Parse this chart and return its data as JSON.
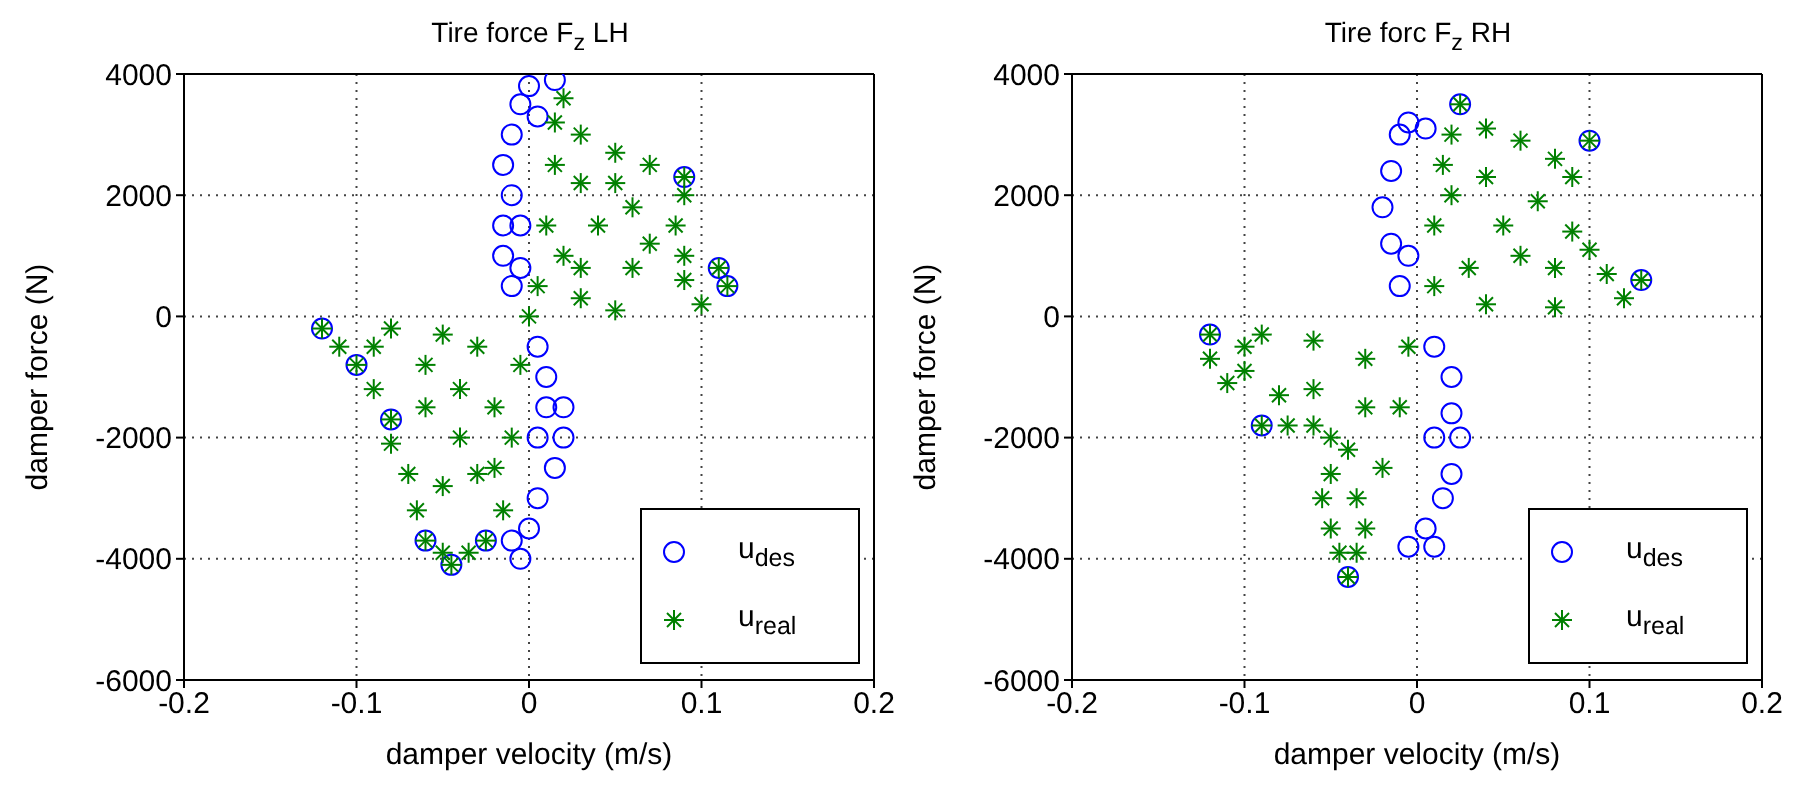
{
  "chart_data": [
    {
      "type": "scatter",
      "title": "Tire force F$_{z}$ LH",
      "xlabel": "damper velocity (m/s)",
      "ylabel": "damper force (N)",
      "xlim": [
        -0.2,
        0.2
      ],
      "xticks": [
        -0.2,
        -0.1,
        0,
        0.1,
        0.2
      ],
      "ylim": [
        -6000,
        4000
      ],
      "yticks": [
        -6000,
        -4000,
        -2000,
        0,
        2000,
        4000
      ],
      "grid": true,
      "legend": "bottom right",
      "series": [
        {
          "name": "u$_{des}$",
          "color": "#0000ff",
          "marker": "circle",
          "x": [
            -0.01,
            -0.015,
            -0.015,
            -0.01,
            -0.015,
            -0.01,
            -0.005,
            0,
            0.015,
            0.005,
            -0.005,
            -0.005,
            0.005,
            0.01,
            0.02,
            0.02,
            0.015,
            0.005,
            0,
            -0.005,
            -0.01,
            0.01,
            0.005,
            0.09,
            0.115,
            0.11,
            -0.12,
            -0.1,
            -0.08,
            -0.06,
            -0.045,
            -0.025
          ],
          "values": [
            500,
            1000,
            1500,
            2000,
            2500,
            3000,
            3500,
            3800,
            3900,
            3300,
            1500,
            800,
            -500,
            -1000,
            -1500,
            -2000,
            -2500,
            -3000,
            -3500,
            -4000,
            -3700,
            -1500,
            -2000,
            2300,
            500,
            800,
            -200,
            -800,
            -1700,
            -3700,
            -4100,
            -3700
          ]
        },
        {
          "name": "u$_{real}$",
          "color": "#008000",
          "marker": "cross",
          "x": [
            0.005,
            0.01,
            0.015,
            0.015,
            0.02,
            0.03,
            0.05,
            0.07,
            0.09,
            0.09,
            0.085,
            0.09,
            0.11,
            0.115,
            0.1,
            0.05,
            0.03,
            0.02,
            0.04,
            0.06,
            0.05,
            0.03,
            0.07,
            0.09,
            0.03,
            0.06,
            -0.12,
            -0.11,
            -0.1,
            -0.09,
            -0.08,
            -0.08,
            -0.07,
            -0.065,
            -0.06,
            -0.05,
            -0.045,
            -0.035,
            -0.025,
            -0.015,
            -0.01,
            -0.005,
            -0.05,
            -0.08,
            -0.03,
            -0.06,
            -0.04,
            -0.02,
            -0.06,
            -0.04,
            -0.03,
            -0.05,
            -0.02,
            -0.09,
            0
          ],
          "values": [
            500,
            1500,
            2500,
            3200,
            3600,
            3000,
            2700,
            2500,
            2300,
            2000,
            1500,
            1000,
            800,
            500,
            200,
            100,
            300,
            1000,
            1500,
            1800,
            2200,
            2200,
            1200,
            600,
            800,
            800,
            -200,
            -500,
            -800,
            -1200,
            -1700,
            -2100,
            -2600,
            -3200,
            -3700,
            -3900,
            -4100,
            -3900,
            -3700,
            -3200,
            -2000,
            -800,
            -300,
            -200,
            -500,
            -800,
            -1200,
            -1500,
            -1500,
            -2000,
            -2600,
            -2800,
            -2500,
            -500,
            0
          ]
        }
      ]
    },
    {
      "type": "scatter",
      "title": "Tire forc F$_{z}$ RH",
      "xlabel": "damper velocity (m/s)",
      "ylabel": "damper force (N)",
      "xlim": [
        -0.2,
        0.2
      ],
      "xticks": [
        -0.2,
        -0.1,
        0,
        0.1,
        0.2
      ],
      "ylim": [
        -6000,
        4000
      ],
      "yticks": [
        -6000,
        -4000,
        -2000,
        0,
        2000,
        4000
      ],
      "grid": true,
      "legend": "bottom right",
      "series": [
        {
          "name": "u$_{des}$",
          "color": "#0000ff",
          "marker": "circle",
          "x": [
            -0.01,
            -0.015,
            -0.02,
            -0.015,
            -0.01,
            -0.005,
            0.005,
            -0.005,
            0.01,
            0.02,
            0.02,
            0.025,
            0.02,
            0.015,
            0.005,
            -0.005,
            0.01,
            0.01,
            0.1,
            0.13,
            -0.12,
            -0.09,
            -0.04,
            0.025
          ],
          "values": [
            500,
            1200,
            1800,
            2400,
            3000,
            3200,
            3100,
            1000,
            -500,
            -1000,
            -1600,
            -2000,
            -2600,
            -3000,
            -3500,
            -3800,
            -3800,
            -2000,
            2900,
            600,
            -300,
            -1800,
            -4300,
            3500
          ]
        },
        {
          "name": "u$_{real}$",
          "color": "#008000",
          "marker": "cross",
          "x": [
            0.01,
            0.01,
            0.015,
            0.02,
            0.025,
            0.04,
            0.06,
            0.08,
            0.1,
            0.09,
            0.07,
            0.09,
            0.1,
            0.11,
            0.13,
            0.12,
            0.08,
            0.04,
            0.03,
            0.05,
            0.04,
            0.06,
            0.08,
            0.02,
            -0.12,
            -0.12,
            -0.11,
            -0.1,
            -0.1,
            -0.09,
            -0.075,
            -0.06,
            -0.05,
            -0.05,
            -0.055,
            -0.05,
            -0.045,
            -0.04,
            -0.035,
            -0.03,
            -0.035,
            -0.02,
            -0.01,
            -0.005,
            -0.06,
            -0.09,
            -0.03,
            -0.06,
            -0.03,
            -0.04,
            -0.08
          ],
          "values": [
            500,
            1500,
            2500,
            3000,
            3500,
            3100,
            2900,
            2600,
            2900,
            2300,
            1900,
            1400,
            1100,
            700,
            600,
            300,
            150,
            200,
            800,
            1500,
            2300,
            1000,
            800,
            2000,
            -300,
            -700,
            -1100,
            -900,
            -500,
            -1800,
            -1800,
            -1800,
            -2000,
            -2600,
            -3000,
            -3500,
            -3900,
            -4300,
            -3900,
            -3500,
            -3000,
            -2500,
            -1500,
            -500,
            -400,
            -300,
            -700,
            -1200,
            -1500,
            -2200,
            -1300
          ]
        }
      ]
    }
  ]
}
